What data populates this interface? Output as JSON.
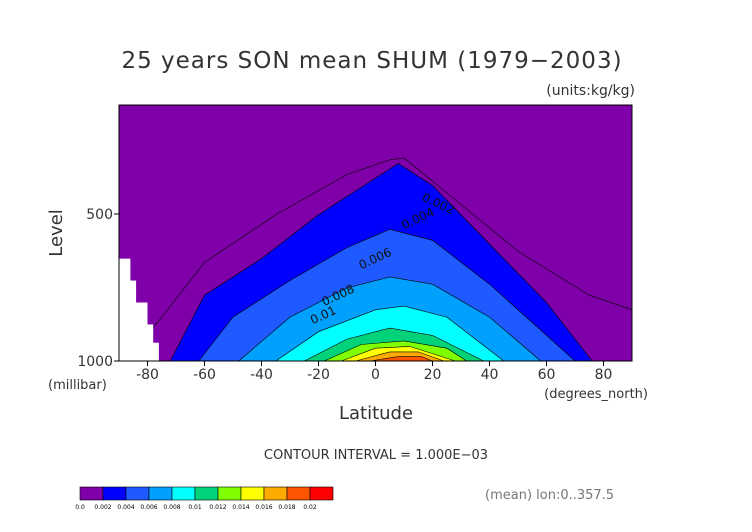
{
  "chart_data": {
    "type": "contour",
    "title": "25 years SON mean SHUM (1979−2003)",
    "units": "(units:kg/kg)",
    "xlabel": "Latitude",
    "xunits": "(degrees_north)",
    "ylabel": "Level",
    "yunits": "(millibar)",
    "xlim": [
      -90,
      90
    ],
    "x_ticks": [
      "-80",
      "-60",
      "-40",
      "-20",
      "0",
      "20",
      "40",
      "60",
      "80"
    ],
    "x_tick_values": [
      -80,
      -60,
      -40,
      -20,
      0,
      20,
      40,
      60,
      80
    ],
    "y_ticks": [
      "500",
      "1000"
    ],
    "contour_interval_text": "CONTOUR INTERVAL = 1.000E−03",
    "footer_note": "(mean) lon:0..357.5",
    "contour_labels": [
      "0.002",
      "0.004",
      "0.006",
      "0.008",
      "0.01"
    ],
    "colorbar": {
      "labels": [
        "0.0",
        "0.002",
        "0.004",
        "0.006",
        "0.008",
        "0.01",
        "0.012",
        "0.014",
        "0.016",
        "0.018",
        "0.02"
      ],
      "colors": [
        "#7f00a8",
        "#0000ff",
        "#1e5aff",
        "#00a0ff",
        "#00ffff",
        "#00d27a",
        "#7fff00",
        "#ffff00",
        "#ffaa00",
        "#ff5500",
        "#ff0000"
      ]
    },
    "series": [
      {
        "level": 0.002,
        "color": "#0000ff",
        "profile": [
          [
            -72,
            1000
          ],
          [
            -60,
            820
          ],
          [
            -40,
            720
          ],
          [
            -20,
            600
          ],
          [
            0,
            500
          ],
          [
            8,
            460
          ],
          [
            20,
            520
          ],
          [
            40,
            680
          ],
          [
            60,
            840
          ],
          [
            76,
            1000
          ]
        ]
      },
      {
        "level": 0.004,
        "color": "#1e5aff",
        "profile": [
          [
            -62,
            1000
          ],
          [
            -50,
            880
          ],
          [
            -30,
            780
          ],
          [
            -10,
            690
          ],
          [
            5,
            640
          ],
          [
            20,
            670
          ],
          [
            40,
            790
          ],
          [
            60,
            930
          ],
          [
            70,
            1000
          ]
        ]
      },
      {
        "level": 0.006,
        "color": "#00a0ff",
        "profile": [
          [
            -48,
            1000
          ],
          [
            -30,
            880
          ],
          [
            -10,
            800
          ],
          [
            5,
            770
          ],
          [
            20,
            790
          ],
          [
            40,
            880
          ],
          [
            58,
            1000
          ]
        ]
      },
      {
        "level": 0.008,
        "color": "#00ffff",
        "profile": [
          [
            -35,
            1000
          ],
          [
            -20,
            920
          ],
          [
            0,
            860
          ],
          [
            10,
            850
          ],
          [
            25,
            880
          ],
          [
            45,
            1000
          ]
        ]
      },
      {
        "level": 0.01,
        "color": "#00d27a",
        "profile": [
          [
            -25,
            1000
          ],
          [
            -10,
            940
          ],
          [
            5,
            910
          ],
          [
            20,
            930
          ],
          [
            38,
            1000
          ]
        ]
      },
      {
        "level": 0.012,
        "color": "#7fff00",
        "profile": [
          [
            -18,
            1000
          ],
          [
            -5,
            955
          ],
          [
            10,
            945
          ],
          [
            25,
            965
          ],
          [
            32,
            1000
          ]
        ]
      },
      {
        "level": 0.014,
        "color": "#ffff00",
        "profile": [
          [
            -12,
            1000
          ],
          [
            0,
            965
          ],
          [
            12,
            960
          ],
          [
            28,
            1000
          ]
        ]
      },
      {
        "level": 0.016,
        "color": "#ffaa00",
        "profile": [
          [
            -7,
            1000
          ],
          [
            5,
            975
          ],
          [
            15,
            975
          ],
          [
            24,
            1000
          ]
        ]
      },
      {
        "level": 0.018,
        "color": "#ff5500",
        "profile": [
          [
            -2,
            1000
          ],
          [
            8,
            988
          ],
          [
            16,
            988
          ],
          [
            20,
            1000
          ]
        ]
      }
    ],
    "outer_contour_profile": [
      [
        -88,
        1000
      ],
      [
        -75,
        880
      ],
      [
        -60,
        730
      ],
      [
        -35,
        600
      ],
      [
        -10,
        490
      ],
      [
        5,
        450
      ],
      [
        10,
        445
      ],
      [
        25,
        540
      ],
      [
        50,
        700
      ],
      [
        75,
        820
      ],
      [
        90,
        860
      ]
    ],
    "missing_region_note": ""
  }
}
